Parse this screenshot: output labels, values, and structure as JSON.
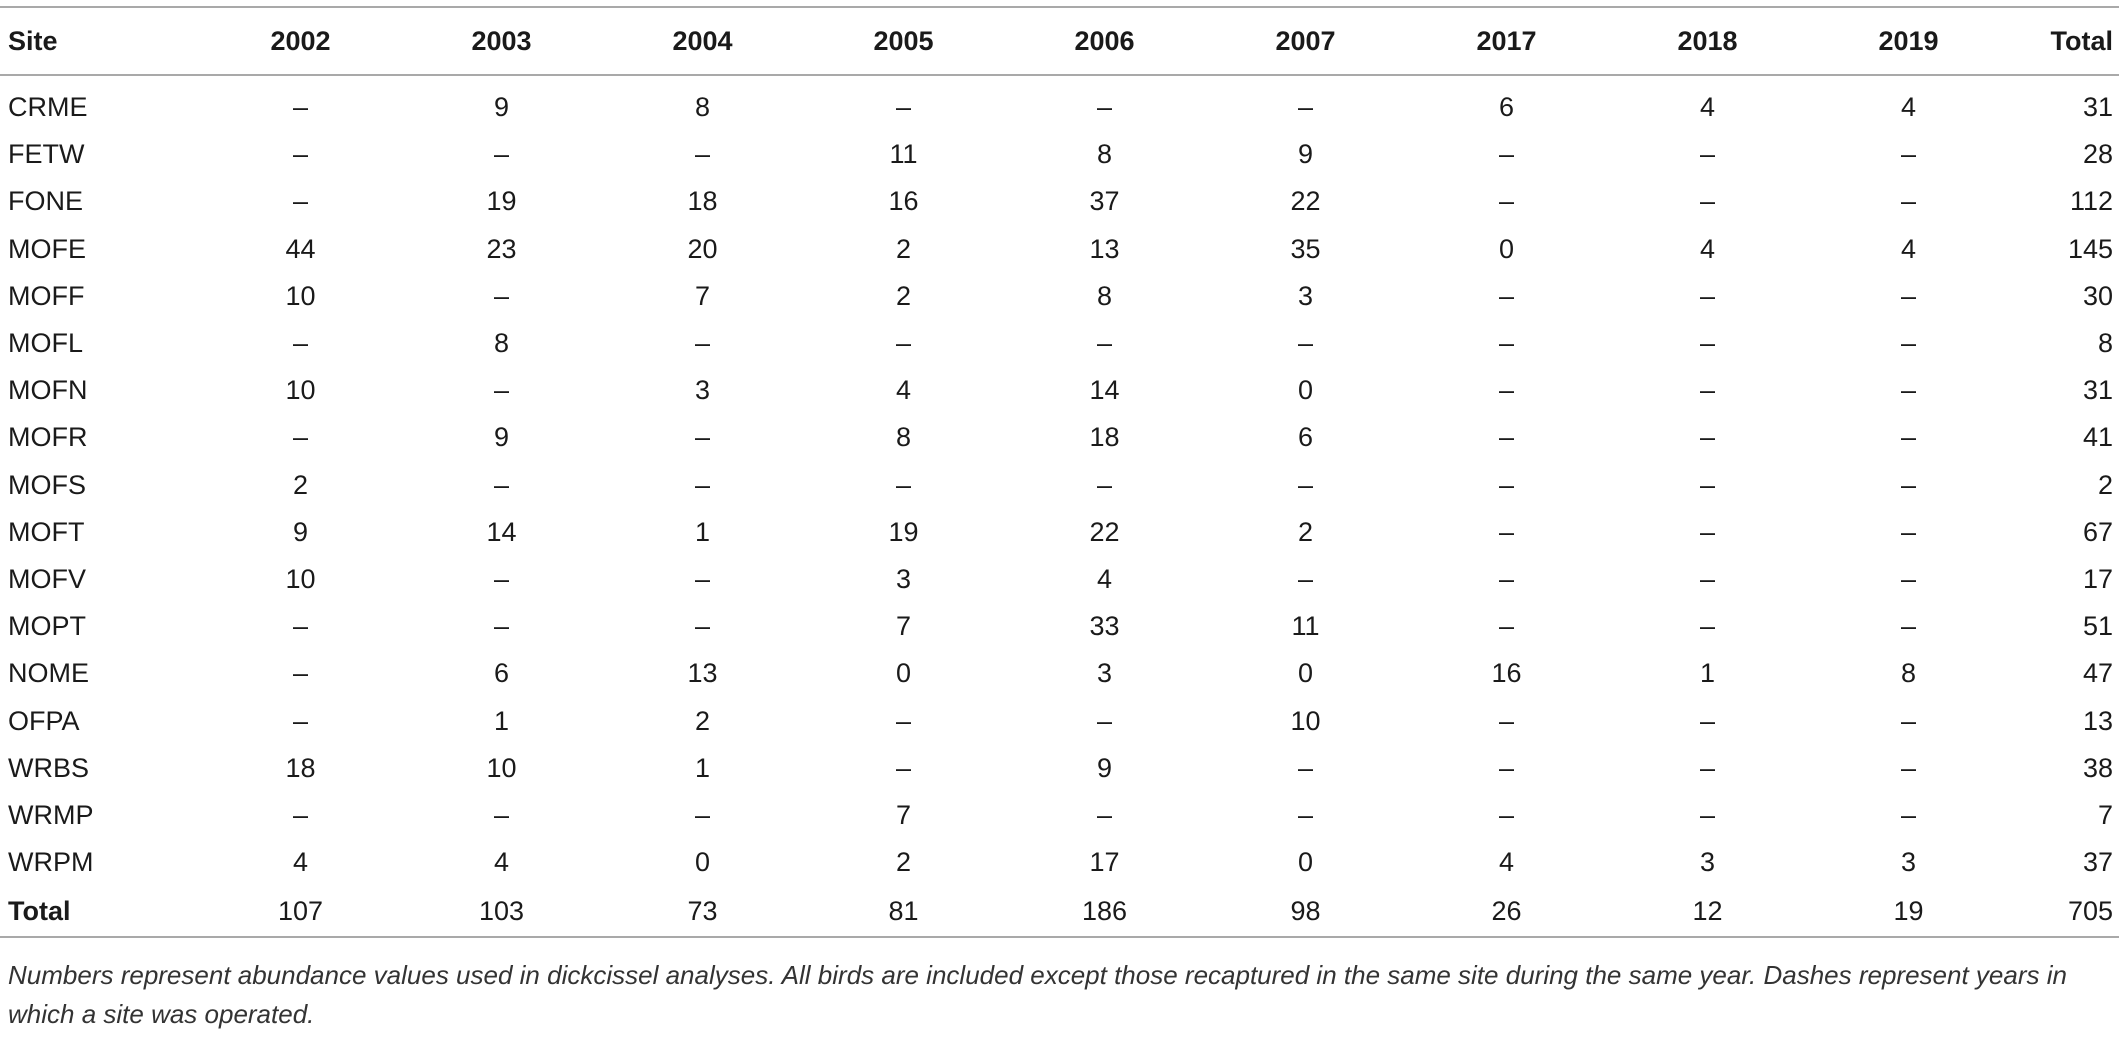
{
  "table": {
    "headers": [
      "Site",
      "2002",
      "2003",
      "2004",
      "2005",
      "2006",
      "2007",
      "2017",
      "2018",
      "2019",
      "Total"
    ],
    "rows": [
      [
        "CRME",
        "–",
        "9",
        "8",
        "–",
        "–",
        "–",
        "6",
        "4",
        "4",
        "31"
      ],
      [
        "FETW",
        "–",
        "–",
        "–",
        "11",
        "8",
        "9",
        "–",
        "–",
        "–",
        "28"
      ],
      [
        "FONE",
        "–",
        "19",
        "18",
        "16",
        "37",
        "22",
        "–",
        "–",
        "–",
        "112"
      ],
      [
        "MOFE",
        "44",
        "23",
        "20",
        "2",
        "13",
        "35",
        "0",
        "4",
        "4",
        "145"
      ],
      [
        "MOFF",
        "10",
        "–",
        "7",
        "2",
        "8",
        "3",
        "–",
        "–",
        "–",
        "30"
      ],
      [
        "MOFL",
        "–",
        "8",
        "–",
        "–",
        "–",
        "–",
        "–",
        "–",
        "–",
        "8"
      ],
      [
        "MOFN",
        "10",
        "–",
        "3",
        "4",
        "14",
        "0",
        "–",
        "–",
        "–",
        "31"
      ],
      [
        "MOFR",
        "–",
        "9",
        "–",
        "8",
        "18",
        "6",
        "–",
        "–",
        "–",
        "41"
      ],
      [
        "MOFS",
        "2",
        "–",
        "–",
        "–",
        "–",
        "–",
        "–",
        "–",
        "–",
        "2"
      ],
      [
        "MOFT",
        "9",
        "14",
        "1",
        "19",
        "22",
        "2",
        "–",
        "–",
        "–",
        "67"
      ],
      [
        "MOFV",
        "10",
        "–",
        "–",
        "3",
        "4",
        "–",
        "–",
        "–",
        "–",
        "17"
      ],
      [
        "MOPT",
        "–",
        "–",
        "–",
        "7",
        "33",
        "11",
        "–",
        "–",
        "–",
        "51"
      ],
      [
        "NOME",
        "–",
        "6",
        "13",
        "0",
        "3",
        "0",
        "16",
        "1",
        "8",
        "47"
      ],
      [
        "OFPA",
        "–",
        "1",
        "2",
        "–",
        "–",
        "10",
        "–",
        "–",
        "–",
        "13"
      ],
      [
        "WRBS",
        "18",
        "10",
        "1",
        "–",
        "9",
        "–",
        "–",
        "–",
        "–",
        "38"
      ],
      [
        "WRMP",
        "–",
        "–",
        "–",
        "7",
        "–",
        "–",
        "–",
        "–",
        "–",
        "7"
      ],
      [
        "WRPM",
        "4",
        "4",
        "0",
        "2",
        "17",
        "0",
        "4",
        "3",
        "3",
        "37"
      ]
    ],
    "totals": [
      "Total",
      "107",
      "103",
      "73",
      "81",
      "186",
      "98",
      "26",
      "12",
      "19",
      "705"
    ]
  },
  "footnote": "Numbers represent abundance values used in dickcissel analyses. All birds are included except those recaptured in the same site during the same year. Dashes represent years in which a site was operated."
}
